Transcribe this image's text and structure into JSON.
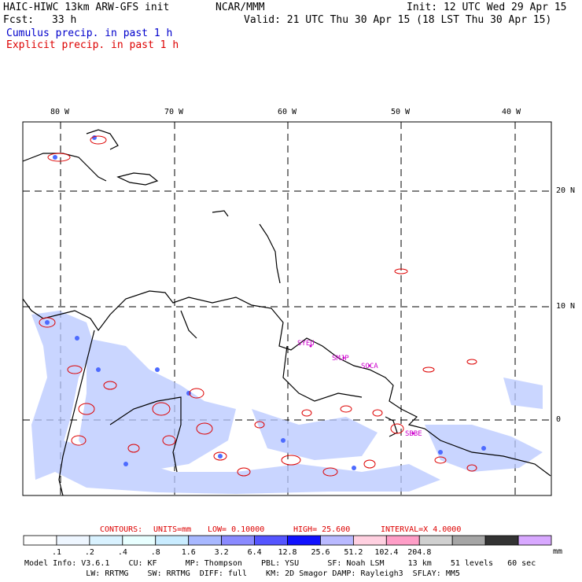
{
  "header": {
    "model_line": "HAIC-HIWC 13km ARW-GFS init",
    "org": "NCAR/MMM",
    "init": "Init: 12 UTC Wed 29 Apr 15",
    "fcst_label": "Fcst:",
    "fcst_value": "33 h",
    "valid": "Valid: 21 UTC Thu 30 Apr 15 (18 LST Thu 30 Apr 15)",
    "cumulus_label": "Cumulus precip. in past 1 h",
    "explicit_label": "Explicit precip. in past 1 h"
  },
  "map": {
    "lon_labels": [
      "80 W",
      "70 W",
      "60 W",
      "50 W",
      "40 W"
    ],
    "lat_labels": [
      "20 N",
      "10 N",
      "0"
    ],
    "station_labels": [
      "SYEU",
      "SMJP",
      "SOCA",
      "SBBE"
    ],
    "colors": {
      "coast": "#000000",
      "explicit": "#dd0000",
      "cumulus": "#4d6bff",
      "station": "#cc00cc",
      "grid": "#000000"
    }
  },
  "contour_info": {
    "contours": "CONTOURS:",
    "units": "UNITS=mm",
    "low": "LOW= 0.10000",
    "high": "HIGH= 25.600",
    "interval": "INTERVAL=X 4.0000"
  },
  "colorbar": {
    "unit": "mm",
    "colors": [
      "#ffffff",
      "#eef6ff",
      "#d9f2ff",
      "#e8ffff",
      "#c9ecff",
      "#a8b8ff",
      "#8a8aff",
      "#5555ff",
      "#1111ff",
      "#b9b9ff",
      "#ffd0e0",
      "#ff9ec7",
      "#d0d0d0",
      "#a5a5a5",
      "#333333",
      "#d8a8ff"
    ],
    "ticks": [
      ".1",
      ".2",
      ".4",
      ".8",
      "1.6",
      "3.2",
      "6.4",
      "12.8",
      "25.6",
      "51.2",
      "102.4",
      "204.8"
    ]
  },
  "footer": {
    "line1": "Model Info: V3.6.1    CU: KF      MP: Thompson    PBL: YSU      SF: Noah LSM     13 km    51 levels   60 sec",
    "line2": "             LW: RRTMG    SW: RRTMG  DIFF: full    KM: 2D Smagor DAMP: Rayleigh3  SFLAY: MM5"
  }
}
